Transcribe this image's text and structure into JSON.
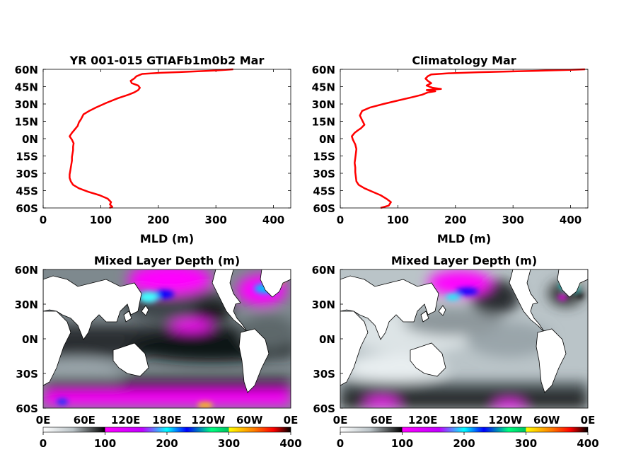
{
  "chart_data": [
    {
      "type": "line",
      "title": "YR 001-015 GTIAFb1m0b2 Mar",
      "xlabel": "MLD (m)",
      "xlim": [
        0,
        430
      ],
      "ylim": [
        -60,
        60
      ],
      "xticks": [
        "0",
        "100",
        "200",
        "300",
        "400"
      ],
      "yticks": [
        "60N",
        "45N",
        "30N",
        "15N",
        "0N",
        "15S",
        "30S",
        "45S",
        "60S"
      ],
      "series": [
        {
          "color": "#ff0000",
          "points": [
            [
              330,
              60
            ],
            [
              300,
              59
            ],
            [
              255,
              58
            ],
            [
              205,
              57
            ],
            [
              172,
              56
            ],
            [
              162,
              54
            ],
            [
              158,
              52
            ],
            [
              152,
              50
            ],
            [
              154,
              48
            ],
            [
              165,
              46
            ],
            [
              168,
              44
            ],
            [
              165,
              42
            ],
            [
              158,
              40
            ],
            [
              148,
              38
            ],
            [
              130,
              35
            ],
            [
              110,
              31
            ],
            [
              92,
              27
            ],
            [
              80,
              24
            ],
            [
              70,
              21
            ],
            [
              66,
              17
            ],
            [
              62,
              14
            ],
            [
              60,
              11
            ],
            [
              55,
              8
            ],
            [
              50,
              5
            ],
            [
              46,
              2
            ],
            [
              50,
              -1
            ],
            [
              53,
              -4
            ],
            [
              52,
              -7
            ],
            [
              52,
              -10
            ],
            [
              51,
              -13
            ],
            [
              50,
              -16
            ],
            [
              50,
              -19
            ],
            [
              49,
              -22
            ],
            [
              48,
              -25
            ],
            [
              47,
              -28
            ],
            [
              46,
              -31
            ],
            [
              46,
              -34
            ],
            [
              48,
              -37
            ],
            [
              52,
              -40
            ],
            [
              62,
              -43
            ],
            [
              78,
              -46
            ],
            [
              98,
              -49
            ],
            [
              112,
              -52
            ],
            [
              118,
              -55
            ],
            [
              116,
              -57
            ],
            [
              120,
              -59
            ],
            [
              115,
              -60
            ]
          ]
        }
      ]
    },
    {
      "type": "line",
      "title": "Climatology Mar",
      "xlabel": "MLD (m)",
      "xlim": [
        0,
        430
      ],
      "ylim": [
        -60,
        60
      ],
      "xticks": [
        "0",
        "100",
        "200",
        "300",
        "400"
      ],
      "yticks": [
        "60N",
        "45N",
        "30N",
        "15N",
        "0N",
        "15S",
        "30S",
        "45S",
        "60S"
      ],
      "series": [
        {
          "color": "#ff0000",
          "points": [
            [
              425,
              60
            ],
            [
              400,
              59.5
            ],
            [
              320,
              58.5
            ],
            [
              240,
              57.5
            ],
            [
              185,
              56.5
            ],
            [
              158,
              55.5
            ],
            [
              152,
              54
            ],
            [
              148,
              52
            ],
            [
              152,
              50
            ],
            [
              158,
              48
            ],
            [
              150,
              46
            ],
            [
              160,
              44
            ],
            [
              175,
              43
            ],
            [
              150,
              42
            ],
            [
              165,
              41
            ],
            [
              152,
              40
            ],
            [
              142,
              38
            ],
            [
              126,
              36
            ],
            [
              100,
              33
            ],
            [
              75,
              30
            ],
            [
              52,
              27
            ],
            [
              38,
              24
            ],
            [
              34,
              20
            ],
            [
              38,
              16
            ],
            [
              42,
              12
            ],
            [
              36,
              9
            ],
            [
              30,
              7
            ],
            [
              25,
              5
            ],
            [
              20,
              2
            ],
            [
              22,
              -1
            ],
            [
              26,
              -5
            ],
            [
              28,
              -9
            ],
            [
              27,
              -13
            ],
            [
              26,
              -17
            ],
            [
              25,
              -21
            ],
            [
              26,
              -25
            ],
            [
              26,
              -29
            ],
            [
              27,
              -33
            ],
            [
              28,
              -37
            ],
            [
              32,
              -40
            ],
            [
              42,
              -43
            ],
            [
              56,
              -46
            ],
            [
              70,
              -49
            ],
            [
              80,
              -52
            ],
            [
              88,
              -55
            ],
            [
              84,
              -58
            ],
            [
              70,
              -60
            ]
          ]
        }
      ]
    },
    {
      "type": "heatmap",
      "title": "Mixed Layer Depth (m)",
      "xticks": [
        "0E",
        "60E",
        "120E",
        "180E",
        "120W",
        "60W",
        "0E"
      ],
      "yticks": [
        "60N",
        "30N",
        "0N",
        "30S",
        "60S"
      ],
      "colorbar": {
        "ticks": [
          "0",
          "100",
          "200",
          "300",
          "400"
        ],
        "range": [
          0,
          400
        ]
      },
      "field": "model"
    },
    {
      "type": "heatmap",
      "title": "Mixed Layer Depth (m)",
      "xticks": [
        "0E",
        "60E",
        "120E",
        "180E",
        "120W",
        "60W",
        "0E"
      ],
      "yticks": [
        "60N",
        "30N",
        "0N",
        "30S",
        "60S"
      ],
      "colorbar": {
        "ticks": [
          "0",
          "100",
          "200",
          "300",
          "400"
        ],
        "range": [
          0,
          400
        ]
      },
      "field": "climatology"
    }
  ],
  "colors": {
    "line": "#ff0000",
    "land": "#ffffff",
    "colormap": [
      "#ffffff",
      "#8e9a9f",
      "#000000",
      "#ff00ff",
      "#0000ff",
      "#00ffff",
      "#ffff00",
      "#ff0000",
      "#000000"
    ]
  }
}
